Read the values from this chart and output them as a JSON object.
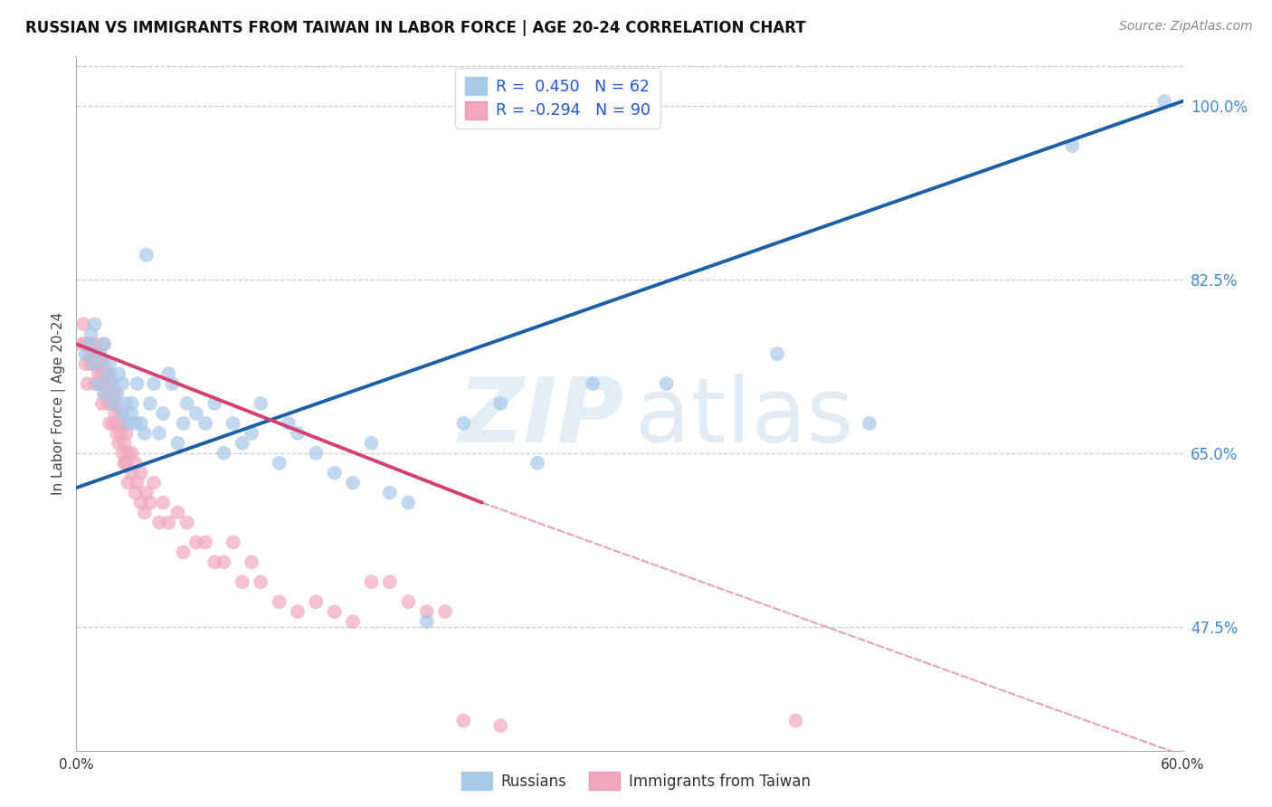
{
  "title": "RUSSIAN VS IMMIGRANTS FROM TAIWAN IN LABOR FORCE | AGE 20-24 CORRELATION CHART",
  "source": "Source: ZipAtlas.com",
  "ylabel": "In Labor Force | Age 20-24",
  "yticks": [
    "47.5%",
    "65.0%",
    "82.5%",
    "100.0%"
  ],
  "ytick_vals": [
    0.475,
    0.65,
    0.825,
    1.0
  ],
  "xmin": 0.0,
  "xmax": 0.6,
  "ymin": 0.35,
  "ymax": 1.05,
  "blue_color": "#a8c8e8",
  "pink_color": "#f0a8bc",
  "trendline_blue": "#1a5fa8",
  "trendline_pink": "#d44070",
  "trendline_pink_dash_color": "#e8a0b8",
  "marker_size": 130,
  "marker_alpha": 0.7,
  "blue_trend_x0": 0.0,
  "blue_trend_y0": 0.615,
  "blue_trend_x1": 0.6,
  "blue_trend_y1": 1.005,
  "pink_trend_x0": 0.0,
  "pink_trend_y0": 0.76,
  "pink_trend_x1_solid": 0.22,
  "pink_trend_y1_solid": 0.6,
  "pink_trend_x1_dash": 0.6,
  "pink_trend_y1_dash": 0.345,
  "legend_text_1": "R =  0.450   N = 62",
  "legend_text_2": "R = -0.294   N = 90",
  "legend_text_color": "#2255cc",
  "watermark_zip": "ZIP",
  "watermark_atlas": "atlas",
  "russians_x": [
    0.005,
    0.007,
    0.008,
    0.01,
    0.01,
    0.012,
    0.013,
    0.015,
    0.015,
    0.017,
    0.018,
    0.02,
    0.02,
    0.022,
    0.023,
    0.025,
    0.025,
    0.027,
    0.028,
    0.03,
    0.03,
    0.032,
    0.033,
    0.035,
    0.037,
    0.038,
    0.04,
    0.042,
    0.045,
    0.047,
    0.05,
    0.052,
    0.055,
    0.058,
    0.06,
    0.065,
    0.07,
    0.075,
    0.08,
    0.085,
    0.09,
    0.095,
    0.1,
    0.11,
    0.115,
    0.12,
    0.13,
    0.14,
    0.15,
    0.16,
    0.17,
    0.18,
    0.19,
    0.21,
    0.23,
    0.25,
    0.28,
    0.32,
    0.38,
    0.43,
    0.54,
    0.59
  ],
  "russians_y": [
    0.75,
    0.76,
    0.77,
    0.78,
    0.74,
    0.72,
    0.75,
    0.71,
    0.76,
    0.73,
    0.74,
    0.7,
    0.72,
    0.71,
    0.73,
    0.69,
    0.72,
    0.7,
    0.68,
    0.69,
    0.7,
    0.68,
    0.72,
    0.68,
    0.67,
    0.85,
    0.7,
    0.72,
    0.67,
    0.69,
    0.73,
    0.72,
    0.66,
    0.68,
    0.7,
    0.69,
    0.68,
    0.7,
    0.65,
    0.68,
    0.66,
    0.67,
    0.7,
    0.64,
    0.68,
    0.67,
    0.65,
    0.63,
    0.62,
    0.66,
    0.61,
    0.6,
    0.48,
    0.68,
    0.7,
    0.64,
    0.72,
    0.72,
    0.75,
    0.68,
    0.96,
    1.005
  ],
  "taiwan_x": [
    0.003,
    0.004,
    0.005,
    0.005,
    0.006,
    0.006,
    0.007,
    0.008,
    0.008,
    0.009,
    0.01,
    0.01,
    0.01,
    0.011,
    0.011,
    0.012,
    0.012,
    0.013,
    0.013,
    0.014,
    0.014,
    0.015,
    0.015,
    0.015,
    0.016,
    0.016,
    0.017,
    0.017,
    0.018,
    0.018,
    0.018,
    0.019,
    0.019,
    0.02,
    0.02,
    0.02,
    0.021,
    0.021,
    0.022,
    0.022,
    0.023,
    0.023,
    0.024,
    0.024,
    0.025,
    0.025,
    0.026,
    0.026,
    0.027,
    0.027,
    0.028,
    0.028,
    0.03,
    0.03,
    0.032,
    0.032,
    0.033,
    0.035,
    0.035,
    0.037,
    0.038,
    0.04,
    0.042,
    0.045,
    0.047,
    0.05,
    0.055,
    0.058,
    0.06,
    0.065,
    0.07,
    0.075,
    0.08,
    0.085,
    0.09,
    0.095,
    0.1,
    0.11,
    0.12,
    0.13,
    0.14,
    0.15,
    0.16,
    0.17,
    0.18,
    0.19,
    0.2,
    0.21,
    0.23,
    0.39
  ],
  "taiwan_y": [
    0.76,
    0.78,
    0.74,
    0.76,
    0.72,
    0.76,
    0.75,
    0.74,
    0.76,
    0.75,
    0.74,
    0.76,
    0.72,
    0.75,
    0.74,
    0.73,
    0.75,
    0.72,
    0.74,
    0.7,
    0.73,
    0.72,
    0.74,
    0.76,
    0.71,
    0.73,
    0.7,
    0.72,
    0.71,
    0.73,
    0.68,
    0.7,
    0.72,
    0.71,
    0.68,
    0.7,
    0.69,
    0.71,
    0.67,
    0.7,
    0.68,
    0.66,
    0.69,
    0.67,
    0.65,
    0.68,
    0.66,
    0.64,
    0.67,
    0.64,
    0.62,
    0.65,
    0.65,
    0.63,
    0.61,
    0.64,
    0.62,
    0.6,
    0.63,
    0.59,
    0.61,
    0.6,
    0.62,
    0.58,
    0.6,
    0.58,
    0.59,
    0.55,
    0.58,
    0.56,
    0.56,
    0.54,
    0.54,
    0.56,
    0.52,
    0.54,
    0.52,
    0.5,
    0.49,
    0.5,
    0.49,
    0.48,
    0.52,
    0.52,
    0.5,
    0.49,
    0.49,
    0.38,
    0.375,
    0.38
  ]
}
